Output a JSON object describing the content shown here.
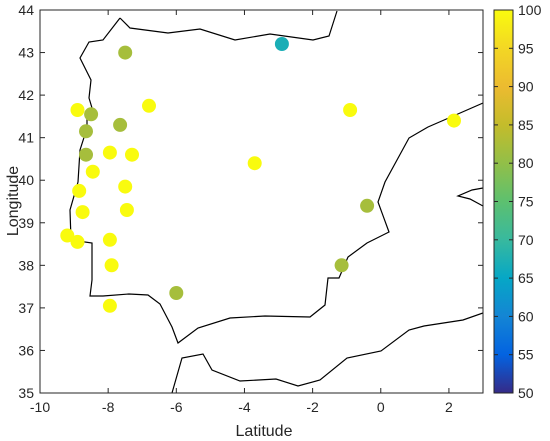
{
  "chart_data": {
    "type": "scatter",
    "title": "",
    "xlabel": "Latitude",
    "ylabel": "Longitude",
    "xlim": [
      -10,
      3
    ],
    "ylim": [
      35,
      44
    ],
    "xticks": [
      -10,
      -8,
      -6,
      -4,
      -2,
      0,
      2
    ],
    "yticks": [
      35,
      36,
      37,
      38,
      39,
      40,
      41,
      42,
      43,
      44
    ],
    "grid": false,
    "colorbar": {
      "min": 50,
      "max": 100,
      "ticks": [
        50,
        55,
        60,
        65,
        70,
        75,
        80,
        85,
        90,
        95,
        100
      ],
      "colormap": "parula"
    },
    "points": [
      {
        "x": -2.9,
        "y": 43.2,
        "value": 67
      },
      {
        "x": -7.5,
        "y": 43.0,
        "value": 82
      },
      {
        "x": -8.9,
        "y": 41.65,
        "value": 100
      },
      {
        "x": -8.5,
        "y": 41.55,
        "value": 82
      },
      {
        "x": -6.8,
        "y": 41.75,
        "value": 100
      },
      {
        "x": -0.9,
        "y": 41.65,
        "value": 100
      },
      {
        "x": 2.15,
        "y": 41.4,
        "value": 100
      },
      {
        "x": -7.65,
        "y": 41.3,
        "value": 82
      },
      {
        "x": -8.65,
        "y": 41.15,
        "value": 82
      },
      {
        "x": -8.65,
        "y": 40.6,
        "value": 82
      },
      {
        "x": -7.95,
        "y": 40.65,
        "value": 100
      },
      {
        "x": -7.3,
        "y": 40.6,
        "value": 100
      },
      {
        "x": -3.7,
        "y": 40.4,
        "value": 100
      },
      {
        "x": -8.45,
        "y": 40.2,
        "value": 100
      },
      {
        "x": -7.5,
        "y": 39.85,
        "value": 100
      },
      {
        "x": -8.85,
        "y": 39.75,
        "value": 100
      },
      {
        "x": -0.4,
        "y": 39.4,
        "value": 82
      },
      {
        "x": -8.75,
        "y": 39.25,
        "value": 100
      },
      {
        "x": -7.45,
        "y": 39.3,
        "value": 100
      },
      {
        "x": -9.2,
        "y": 38.7,
        "value": 100
      },
      {
        "x": -8.9,
        "y": 38.55,
        "value": 100
      },
      {
        "x": -7.95,
        "y": 38.6,
        "value": 100
      },
      {
        "x": -7.9,
        "y": 38.0,
        "value": 100
      },
      {
        "x": -1.15,
        "y": 38.0,
        "value": 82
      },
      {
        "x": -6.0,
        "y": 37.35,
        "value": 82
      },
      {
        "x": -7.95,
        "y": 37.05,
        "value": 100
      }
    ]
  },
  "colors": {
    "green": "#63c25a",
    "yellow": "#f9f91a",
    "blue": "#2b8ff0",
    "axis": "#262626",
    "outline": "#000000"
  }
}
